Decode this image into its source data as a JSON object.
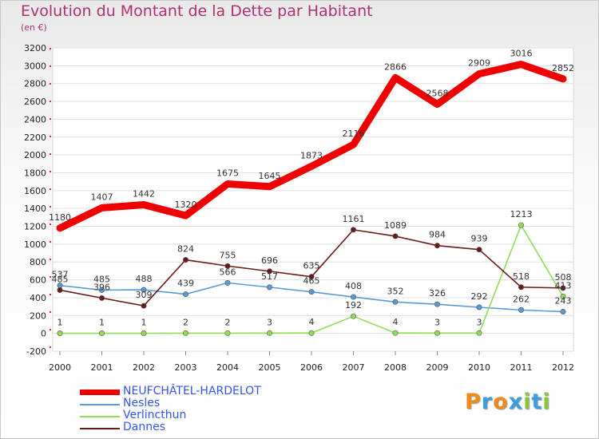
{
  "title": "Evolution du Montant de la Dette par Habitant",
  "subtitle": "(en €)",
  "logo": "Proxiti",
  "colors": {
    "neufchatel": "#ee0000",
    "nesles": "#5a9bd5",
    "verlincthun": "#90dd55",
    "dannes": "#6b1a1a",
    "axis_text": "#222222",
    "grid": "#e0e0e0"
  },
  "chart_data": {
    "type": "line",
    "title": "Evolution du Montant de la Dette par Habitant",
    "subtitle": "(en €)",
    "categories": [
      "2000",
      "2001",
      "2002",
      "2003",
      "2004",
      "2005",
      "2006",
      "2007",
      "2008",
      "2009",
      "2010",
      "2011",
      "2012"
    ],
    "ylim": [
      -200,
      3200
    ],
    "yticks": [
      -200,
      0,
      200,
      400,
      600,
      800,
      1000,
      1200,
      1400,
      1600,
      1800,
      2000,
      2200,
      2400,
      2600,
      2800,
      3000,
      3200
    ],
    "grid": true,
    "legend_position": "bottom-left",
    "series": [
      {
        "name": "NEUFCHÂTEL-HARDELOT",
        "color_key": "neufchatel",
        "values": [
          1180,
          1407,
          1442,
          1320,
          1675,
          1645,
          1873,
          2116,
          2866,
          2568,
          2909,
          3016,
          2852
        ],
        "labels": [
          "1180",
          "1407",
          "1442",
          "1320",
          "1675",
          "1645",
          "1873",
          "2116",
          "2866",
          "2568",
          "2909",
          "3016",
          "2852"
        ]
      },
      {
        "name": "Nesles",
        "color_key": "nesles",
        "values": [
          537,
          485,
          488,
          439,
          566,
          517,
          465,
          408,
          352,
          326,
          292,
          262,
          243
        ],
        "labels": [
          "537",
          "485",
          "488",
          "439",
          "566",
          "517",
          "465",
          "408",
          "352",
          "326",
          "292",
          "262",
          "243"
        ]
      },
      {
        "name": "Verlincthun",
        "color_key": "verlincthun",
        "values": [
          1,
          1,
          1,
          2,
          2,
          3,
          4,
          192,
          4,
          3,
          3,
          1213,
          413
        ],
        "labels": [
          "1",
          "1",
          "1",
          "2",
          "2",
          "3",
          "4",
          "192",
          "4",
          "3",
          "3",
          "1213",
          "413"
        ]
      },
      {
        "name": "Dannes",
        "color_key": "dannes",
        "values": [
          485,
          396,
          309,
          824,
          755,
          696,
          635,
          1161,
          1089,
          984,
          939,
          518,
          508
        ],
        "labels": [
          "485",
          "396",
          "309",
          "824",
          "755",
          "696",
          "635",
          "1161",
          "1089",
          "984",
          "939",
          "518",
          "508"
        ]
      }
    ]
  }
}
